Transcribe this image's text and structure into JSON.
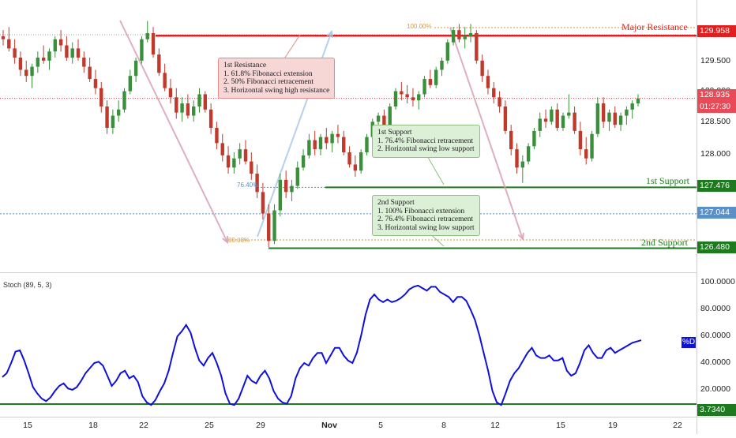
{
  "chart_data": {
    "type": "candlestick",
    "instrument_timeframe": "Daily",
    "price_axis": {
      "ticks": [
        "129.500",
        "129.000",
        "128.500",
        "128.000"
      ],
      "range": [
        126.2,
        130.2
      ]
    },
    "x_axis": {
      "ticks": [
        "15",
        "18",
        "22",
        "25",
        "29",
        "Nov",
        "5",
        "8",
        "12",
        "15",
        "19",
        "22"
      ]
    },
    "levels": {
      "major_resistance": {
        "label": "Major Resistance",
        "price": "129.958",
        "color": "#e02020"
      },
      "current_price": {
        "price": "128.935",
        "countdown": "01:27:30",
        "color": "#e84b57"
      },
      "first_support": {
        "label": "1st Support",
        "price": "127.476",
        "color": "#1e7a1e"
      },
      "level_127": {
        "price": "127.044",
        "color": "#5b8fc7"
      },
      "second_support": {
        "label": "2nd Support",
        "price": "126.480",
        "color": "#1e7a1e"
      }
    },
    "fib_labels": {
      "top": "100.00%",
      "bottom": "00.00%",
      "mid": "76.40%"
    },
    "annotations": {
      "first_resistance": {
        "title": "1st Resistance",
        "lines": [
          "1. 61.8% Fibonacci extension",
          "2. 50% Fibonacci retracement",
          "3. Horizontal swing high resistance"
        ]
      },
      "first_support": {
        "title": "1st Support",
        "lines": [
          "1. 76.4% Fibonacci retracement",
          "2. Horizontal swing low support"
        ]
      },
      "second_support": {
        "title": "2nd Support",
        "lines": [
          "1. 100% Fibonacci extension",
          "2. 76.4% Fibonacci retracement",
          "3. Horizontal swing low support"
        ]
      }
    },
    "indicator": {
      "name": "Stoch (89, 5, 3)",
      "ticks": [
        "100.0000",
        "80.0000",
        "60.0000",
        "40.0000",
        "20.0000"
      ],
      "range": [
        0,
        100
      ],
      "series_tag": "%D",
      "level": "3.7340",
      "line_color": "#1010d8",
      "level_color": "#1e7a1e",
      "values": [
        25,
        28,
        36,
        45,
        46,
        38,
        28,
        17,
        12,
        8,
        6,
        9,
        14,
        18,
        20,
        16,
        15,
        17,
        22,
        28,
        32,
        36,
        37,
        34,
        26,
        18,
        22,
        28,
        30,
        24,
        26,
        21,
        10,
        5,
        3,
        7,
        14,
        20,
        30,
        44,
        57,
        61,
        66,
        60,
        48,
        38,
        34,
        40,
        44,
        36,
        26,
        12,
        4,
        3,
        8,
        17,
        26,
        22,
        20,
        26,
        30,
        24,
        14,
        8,
        5,
        4,
        10,
        24,
        32,
        36,
        34,
        40,
        44,
        44,
        36,
        42,
        48,
        48,
        42,
        38,
        36,
        44,
        58,
        74,
        86,
        90,
        86,
        84,
        86,
        84,
        85,
        87,
        90,
        94,
        96,
        97,
        95,
        93,
        96,
        96,
        92,
        90,
        88,
        84,
        88,
        88,
        85,
        78,
        70,
        58,
        44,
        30,
        14,
        5,
        3,
        12,
        22,
        28,
        32,
        38,
        44,
        48,
        42,
        40,
        40,
        42,
        38,
        38,
        40,
        30,
        26,
        28,
        36,
        46,
        50,
        44,
        40,
        40,
        46,
        48,
        44,
        46,
        48,
        50,
        52,
        53,
        54
      ]
    },
    "candles_ohlc": [
      [
        129.95,
        130.05,
        129.8,
        129.9
      ],
      [
        129.9,
        130.1,
        129.7,
        129.75
      ],
      [
        129.75,
        129.9,
        129.5,
        129.6
      ],
      [
        129.6,
        129.7,
        129.3,
        129.4
      ],
      [
        129.4,
        129.55,
        129.2,
        129.3
      ],
      [
        129.3,
        129.5,
        129.1,
        129.45
      ],
      [
        129.45,
        129.7,
        129.35,
        129.6
      ],
      [
        129.6,
        129.8,
        129.5,
        129.55
      ],
      [
        129.55,
        129.75,
        129.4,
        129.7
      ],
      [
        129.7,
        129.95,
        129.6,
        129.9
      ],
      [
        129.9,
        130.05,
        129.7,
        129.8
      ],
      [
        129.8,
        129.95,
        129.55,
        129.6
      ],
      [
        129.6,
        129.85,
        129.5,
        129.75
      ],
      [
        129.75,
        129.9,
        129.55,
        129.6
      ],
      [
        129.6,
        129.7,
        129.35,
        129.45
      ],
      [
        129.45,
        129.6,
        129.2,
        129.25
      ],
      [
        129.25,
        129.4,
        129.0,
        129.1
      ],
      [
        129.1,
        129.2,
        128.7,
        128.8
      ],
      [
        128.8,
        128.9,
        128.35,
        128.45
      ],
      [
        128.45,
        128.75,
        128.35,
        128.65
      ],
      [
        128.65,
        128.9,
        128.55,
        128.75
      ],
      [
        128.75,
        129.1,
        128.7,
        129.05
      ],
      [
        129.05,
        129.4,
        129.0,
        129.3
      ],
      [
        129.3,
        129.6,
        129.2,
        129.55
      ],
      [
        129.55,
        129.95,
        129.5,
        129.9
      ],
      [
        129.9,
        130.2,
        129.85,
        130.0
      ],
      [
        130.0,
        130.1,
        129.6,
        129.65
      ],
      [
        129.65,
        129.75,
        129.3,
        129.35
      ],
      [
        129.35,
        129.5,
        129.05,
        129.1
      ],
      [
        129.1,
        129.25,
        128.85,
        128.95
      ],
      [
        128.95,
        129.1,
        128.6,
        128.7
      ],
      [
        128.7,
        128.95,
        128.55,
        128.85
      ],
      [
        128.85,
        129.0,
        128.6,
        128.65
      ],
      [
        128.65,
        128.9,
        128.55,
        128.8
      ],
      [
        128.8,
        129.1,
        128.7,
        129.0
      ],
      [
        129.0,
        129.05,
        128.7,
        128.75
      ],
      [
        128.75,
        128.85,
        128.35,
        128.45
      ],
      [
        128.45,
        128.55,
        128.1,
        128.2
      ],
      [
        128.2,
        128.35,
        127.9,
        128.0
      ],
      [
        128.0,
        128.15,
        127.7,
        127.8
      ],
      [
        127.8,
        128.05,
        127.7,
        127.95
      ],
      [
        127.95,
        128.2,
        127.85,
        128.1
      ],
      [
        128.1,
        128.25,
        127.85,
        127.9
      ],
      [
        127.9,
        128.05,
        127.6,
        127.7
      ],
      [
        127.7,
        127.85,
        127.3,
        127.4
      ],
      [
        127.4,
        127.55,
        126.95,
        127.05
      ],
      [
        127.05,
        127.2,
        126.5,
        126.6
      ],
      [
        126.6,
        127.2,
        126.55,
        127.1
      ],
      [
        127.1,
        127.7,
        127.0,
        127.6
      ],
      [
        127.6,
        127.75,
        127.3,
        127.4
      ],
      [
        127.4,
        127.6,
        127.25,
        127.5
      ],
      [
        127.5,
        127.9,
        127.45,
        127.8
      ],
      [
        127.8,
        128.1,
        127.75,
        128.0
      ],
      [
        128.0,
        128.35,
        127.95,
        128.25
      ],
      [
        128.25,
        128.4,
        128.0,
        128.1
      ],
      [
        128.1,
        128.35,
        128.0,
        128.3
      ],
      [
        128.3,
        128.45,
        128.1,
        128.2
      ],
      [
        128.2,
        128.4,
        128.05,
        128.35
      ],
      [
        128.35,
        128.5,
        128.2,
        128.3
      ],
      [
        128.3,
        128.4,
        128.0,
        128.05
      ],
      [
        128.05,
        128.15,
        127.8,
        127.85
      ],
      [
        127.85,
        128.0,
        127.65,
        127.75
      ],
      [
        127.75,
        128.1,
        127.7,
        128.05
      ],
      [
        128.05,
        128.35,
        128.0,
        128.3
      ],
      [
        128.3,
        128.6,
        128.25,
        128.55
      ],
      [
        128.55,
        128.7,
        128.4,
        128.65
      ],
      [
        128.65,
        128.75,
        128.45,
        128.5
      ],
      [
        128.5,
        128.85,
        128.45,
        128.8
      ],
      [
        128.8,
        129.1,
        128.75,
        129.05
      ],
      [
        129.05,
        129.2,
        128.9,
        129.0
      ],
      [
        129.0,
        129.15,
        128.85,
        128.95
      ],
      [
        128.95,
        129.1,
        128.8,
        128.9
      ],
      [
        128.9,
        129.05,
        128.75,
        129.0
      ],
      [
        129.0,
        129.3,
        128.95,
        129.25
      ],
      [
        129.25,
        129.4,
        129.1,
        129.15
      ],
      [
        129.15,
        129.45,
        129.1,
        129.4
      ],
      [
        129.4,
        129.6,
        129.3,
        129.55
      ],
      [
        129.55,
        129.9,
        129.5,
        129.85
      ],
      [
        129.85,
        130.1,
        129.8,
        130.05
      ],
      [
        130.05,
        130.15,
        129.85,
        129.9
      ],
      [
        129.9,
        130.1,
        129.75,
        129.95
      ],
      [
        129.95,
        130.15,
        129.85,
        130.0
      ],
      [
        130.0,
        130.05,
        129.5,
        129.55
      ],
      [
        129.55,
        129.65,
        129.2,
        129.3
      ],
      [
        129.3,
        129.4,
        129.0,
        129.1
      ],
      [
        129.1,
        129.2,
        128.85,
        128.95
      ],
      [
        128.95,
        129.05,
        128.7,
        128.8
      ],
      [
        128.8,
        128.9,
        128.35,
        128.4
      ],
      [
        128.4,
        128.5,
        128.0,
        128.1
      ],
      [
        128.1,
        128.2,
        127.7,
        127.8
      ],
      [
        127.8,
        128.0,
        127.55,
        127.9
      ],
      [
        127.9,
        128.2,
        127.85,
        128.15
      ],
      [
        128.15,
        128.45,
        128.1,
        128.4
      ],
      [
        128.4,
        128.7,
        128.3,
        128.6
      ],
      [
        128.6,
        128.75,
        128.45,
        128.55
      ],
      [
        128.55,
        128.8,
        128.5,
        128.75
      ],
      [
        128.75,
        128.85,
        128.4,
        128.45
      ],
      [
        128.45,
        128.7,
        128.4,
        128.65
      ],
      [
        128.65,
        129.0,
        128.6,
        128.7
      ],
      [
        128.7,
        128.8,
        128.35,
        128.4
      ],
      [
        128.4,
        128.55,
        128.0,
        128.1
      ],
      [
        128.1,
        128.3,
        127.85,
        127.95
      ],
      [
        127.95,
        128.4,
        127.9,
        128.35
      ],
      [
        128.35,
        128.95,
        128.3,
        128.85
      ],
      [
        128.85,
        128.95,
        128.45,
        128.55
      ],
      [
        128.55,
        128.75,
        128.4,
        128.7
      ],
      [
        128.7,
        128.8,
        128.45,
        128.5
      ],
      [
        128.5,
        128.7,
        128.4,
        128.65
      ],
      [
        128.65,
        128.8,
        128.5,
        128.75
      ],
      [
        128.75,
        128.9,
        128.6,
        128.85
      ],
      [
        128.85,
        129.0,
        128.8,
        128.93
      ]
    ]
  }
}
